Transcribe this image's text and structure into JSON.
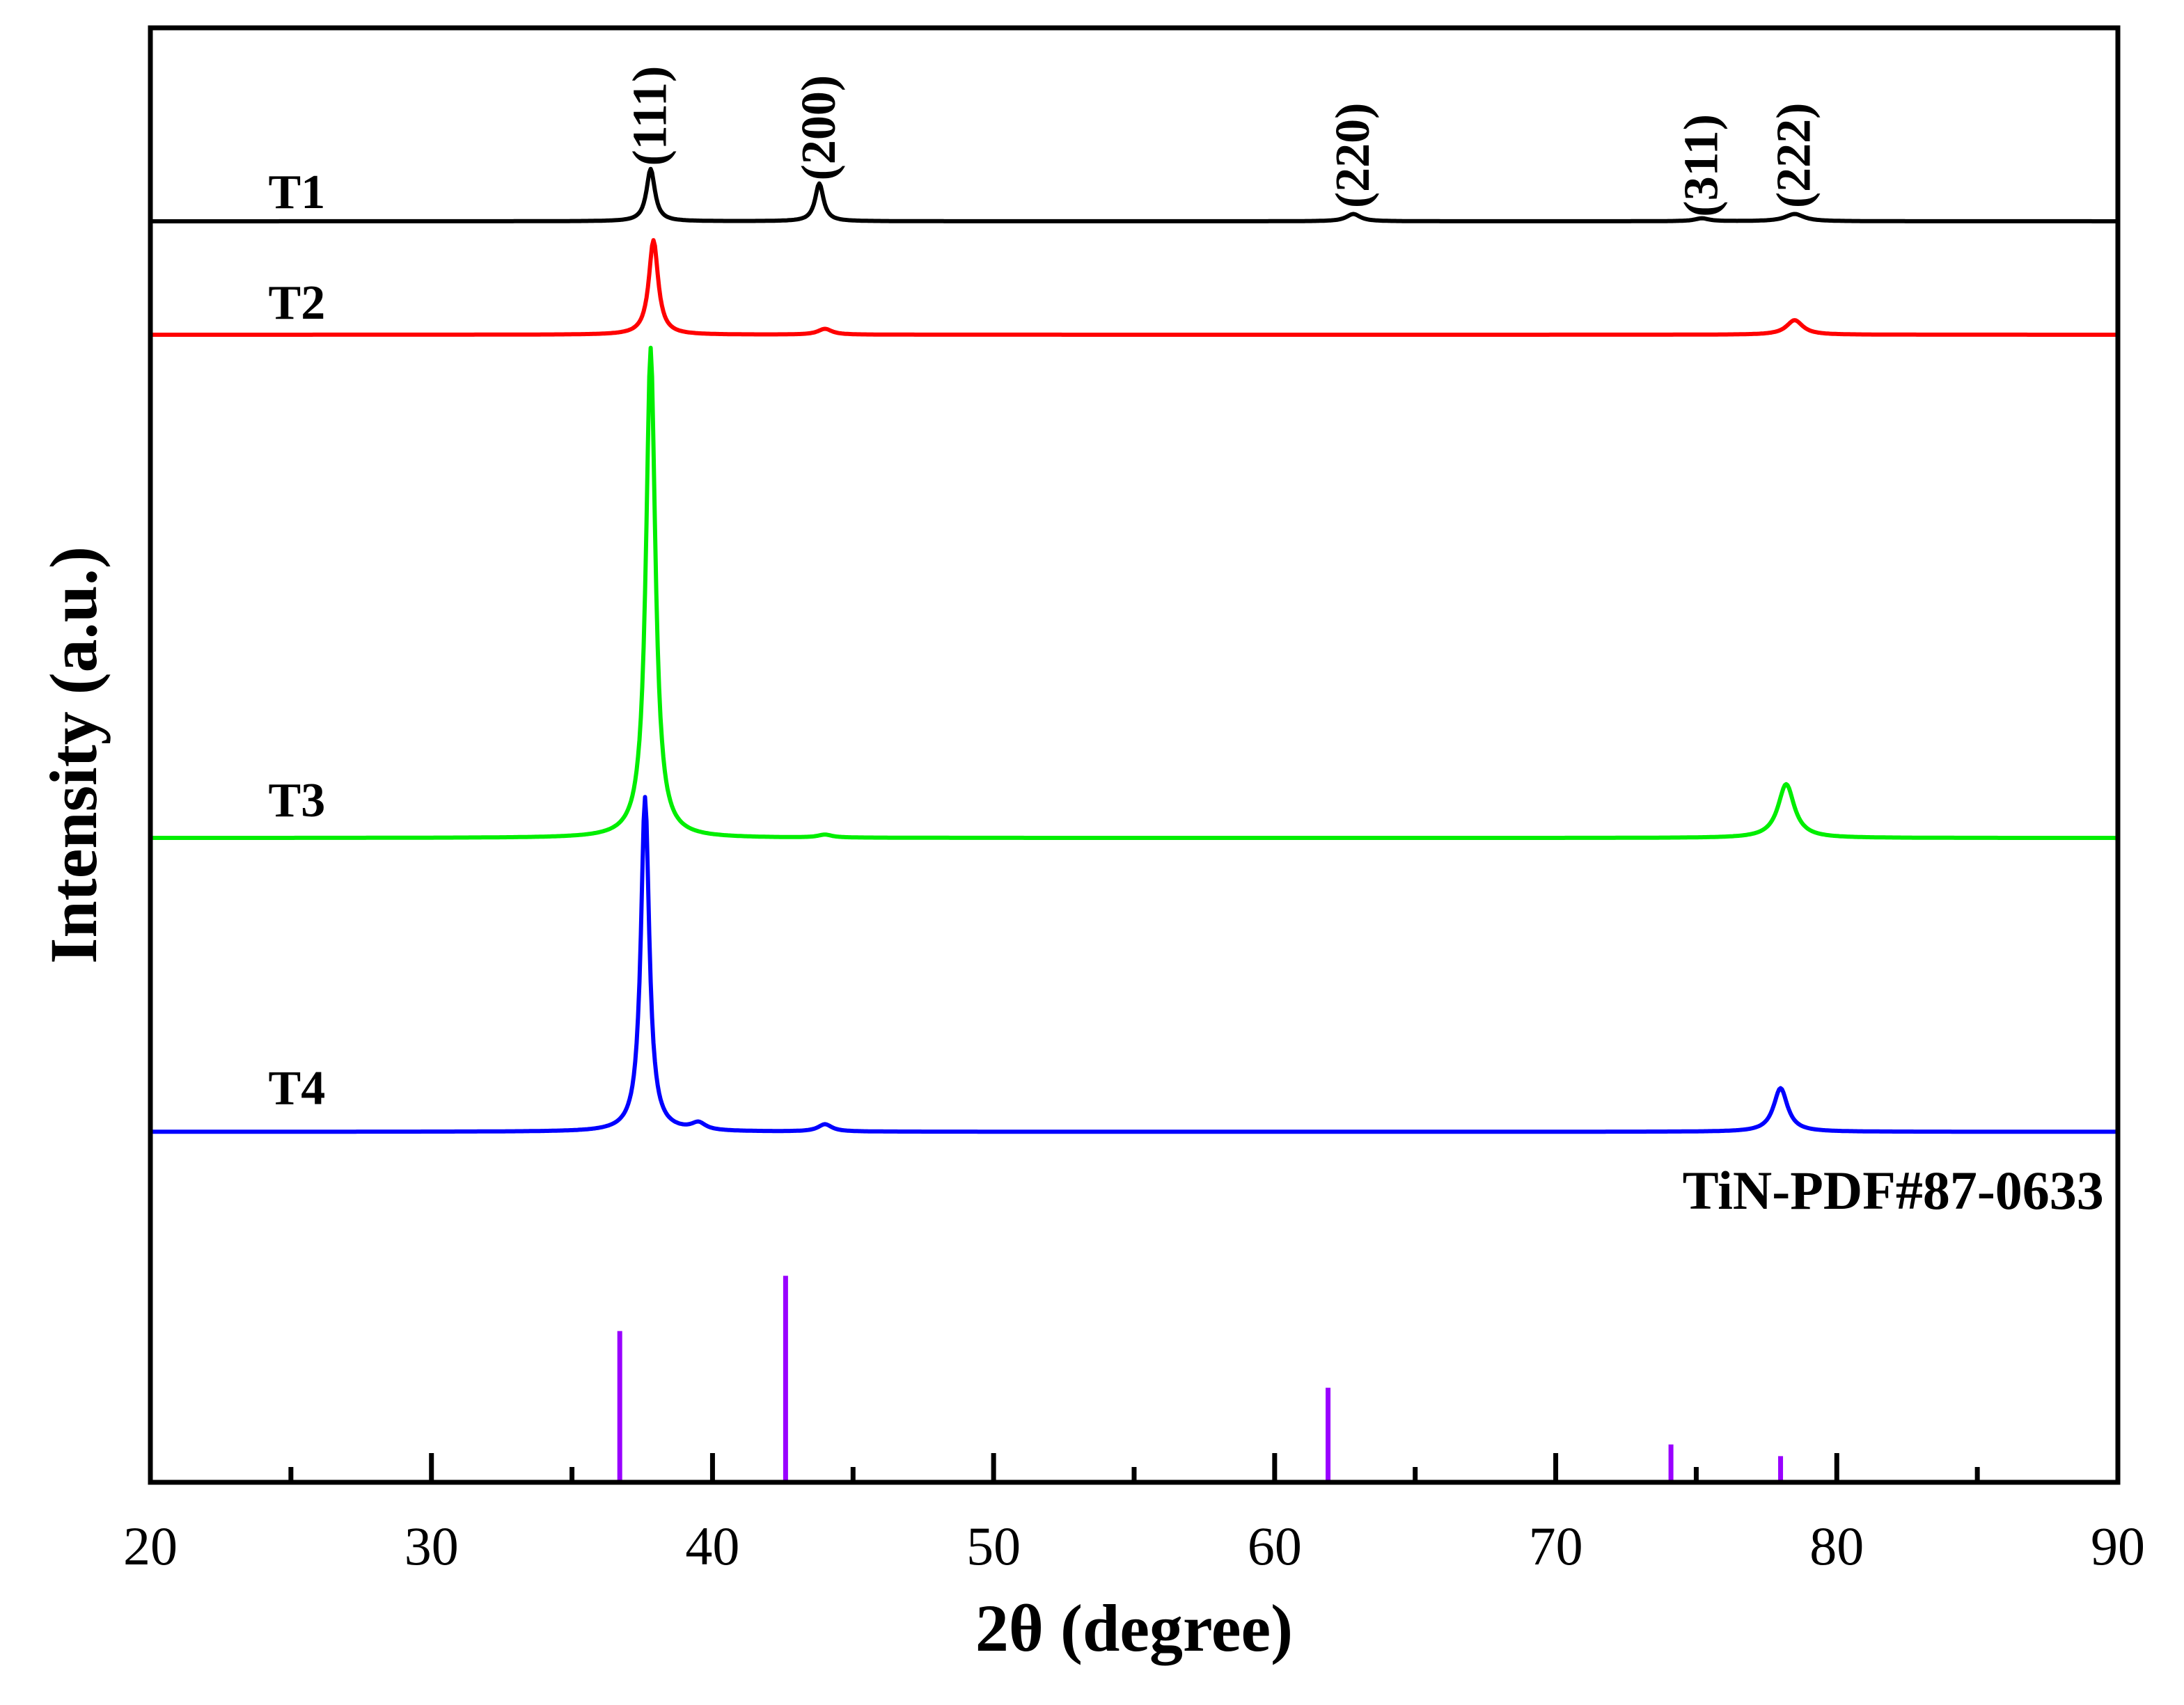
{
  "chart_data": {
    "type": "line",
    "title": "",
    "xlabel": "2θ (degree)",
    "ylabel": "Intensity (a.u.)",
    "xlim": [
      20,
      90
    ],
    "ylim": [
      0,
      100
    ],
    "xticks": [
      "20",
      "30",
      "40",
      "50",
      "60",
      "70",
      "80",
      "90"
    ],
    "xtick_values": [
      20,
      30,
      40,
      50,
      60,
      70,
      80,
      90
    ],
    "minor_xticks": [
      25,
      35,
      45,
      55,
      65,
      75,
      85
    ],
    "grid": false,
    "series": [
      {
        "name": "T1",
        "color": "#000000",
        "baseline": 86.7,
        "peaks": [
          {
            "x": 37.8,
            "height": 3.6,
            "width": 0.18
          },
          {
            "x": 43.8,
            "height": 2.6,
            "width": 0.18
          },
          {
            "x": 62.8,
            "height": 0.5,
            "width": 0.3
          },
          {
            "x": 75.2,
            "height": 0.2,
            "width": 0.3
          },
          {
            "x": 78.5,
            "height": 0.5,
            "width": 0.4
          }
        ]
      },
      {
        "name": "T2",
        "color": "#ff0000",
        "baseline": 78.9,
        "peaks": [
          {
            "x": 37.9,
            "height": 6.5,
            "width": 0.2
          },
          {
            "x": 44.0,
            "height": 0.4,
            "width": 0.3
          },
          {
            "x": 78.5,
            "height": 1.0,
            "width": 0.35
          }
        ]
      },
      {
        "name": "T3",
        "color": "#00ee00",
        "baseline": 44.3,
        "peaks": [
          {
            "x": 37.8,
            "height": 33.7,
            "width": 0.2
          },
          {
            "x": 44.0,
            "height": 0.2,
            "width": 0.3
          },
          {
            "x": 78.2,
            "height": 3.7,
            "width": 0.35
          }
        ]
      },
      {
        "name": "T4",
        "color": "#0000ff",
        "baseline": 24.1,
        "peaks": [
          {
            "x": 37.6,
            "height": 23.0,
            "width": 0.18
          },
          {
            "x": 39.5,
            "height": 0.5,
            "width": 0.3
          },
          {
            "x": 44.0,
            "height": 0.5,
            "width": 0.3
          },
          {
            "x": 78.0,
            "height": 3.0,
            "width": 0.3
          }
        ]
      }
    ],
    "reference": {
      "name": "TiN-PDF#87-0633",
      "color": "#9900ff",
      "lines": [
        {
          "x": 36.7,
          "intensity": 10.4
        },
        {
          "x": 42.6,
          "intensity": 14.2
        },
        {
          "x": 61.9,
          "intensity": 6.5
        },
        {
          "x": 74.1,
          "intensity": 2.6
        },
        {
          "x": 78.0,
          "intensity": 1.8
        }
      ]
    },
    "peak_annotations": [
      {
        "label": "(111)",
        "x": 37.8,
        "y": 90.5
      },
      {
        "label": "(200)",
        "x": 43.8,
        "y": 89.5
      },
      {
        "label": "(220)",
        "x": 62.8,
        "y": 87.6
      },
      {
        "label": "(311)",
        "x": 75.2,
        "y": 87.0
      },
      {
        "label": "(222)",
        "x": 78.5,
        "y": 87.6
      }
    ],
    "sample_labels": [
      {
        "label": "T1",
        "x": 24.2,
        "y": 87.6
      },
      {
        "label": "T2",
        "x": 24.2,
        "y": 80.0
      },
      {
        "label": "T3",
        "x": 24.2,
        "y": 45.8
      },
      {
        "label": "T4",
        "x": 24.2,
        "y": 26.0
      }
    ],
    "reference_label_pos": {
      "x": 89.5,
      "y": 18.8
    }
  }
}
